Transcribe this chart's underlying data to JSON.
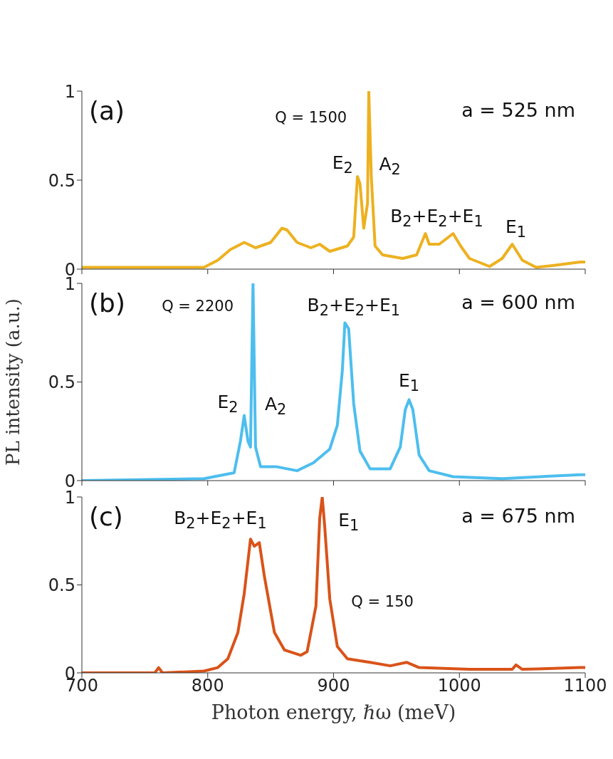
{
  "chart_data": [
    {
      "type": "line",
      "xlim": [
        700,
        1100
      ],
      "xticks": [
        700,
        800,
        900,
        1000,
        1100
      ],
      "ylim": [
        0,
        1
      ],
      "yticks": [
        0,
        0.5,
        1
      ],
      "tick_labels": "y",
      "grid": false,
      "legend": false,
      "marker": "none",
      "line_style": "solid",
      "series": [
        {
          "color": "#edb120",
          "x": [
            700,
            745,
            797,
            808,
            818,
            829,
            838,
            850,
            859,
            863,
            871,
            882,
            889,
            897,
            911,
            916,
            919,
            921,
            924,
            927,
            928,
            930,
            933,
            939,
            955,
            966,
            973,
            976,
            984,
            995,
            1001,
            1008,
            1024,
            1034,
            1042,
            1050,
            1061,
            1074,
            1096,
            1100
          ],
          "values": [
            0.01,
            0.01,
            0.01,
            0.05,
            0.11,
            0.15,
            0.12,
            0.15,
            0.23,
            0.22,
            0.15,
            0.12,
            0.14,
            0.1,
            0.13,
            0.18,
            0.52,
            0.48,
            0.23,
            0.37,
            1.0,
            0.52,
            0.13,
            0.08,
            0.06,
            0.08,
            0.2,
            0.14,
            0.14,
            0.2,
            0.13,
            0.06,
            0.015,
            0.06,
            0.14,
            0.05,
            0.01,
            0.02,
            0.04,
            0.04
          ]
        }
      ],
      "annotations": [
        "(a)",
        "a = 525 nm",
        "Q = 1500",
        "E$_{2}$",
        "A$_{2}$",
        "B$_{2}$+E$_{2}$+E$_{1}$",
        "E$_{1}$"
      ]
    },
    {
      "type": "line",
      "xlim": [
        700,
        1100
      ],
      "xticks": [
        700,
        800,
        900,
        1000,
        1100
      ],
      "ylim": [
        0,
        1
      ],
      "yticks": [
        0,
        0.5,
        1
      ],
      "tick_labels": "y",
      "grid": false,
      "legend": false,
      "marker": "none",
      "line_style": "solid",
      "ylabel": "PL intensity (a.u.)",
      "series": [
        {
          "color": "#4dbeee",
          "x": [
            700,
            797,
            821,
            826,
            829,
            832,
            834,
            836,
            838,
            842,
            855,
            871,
            884,
            897,
            903,
            907,
            909,
            912,
            916,
            921,
            929,
            945,
            953,
            957,
            960,
            963,
            968,
            976,
            995,
            1034,
            1096,
            1100
          ],
          "values": [
            0.0,
            0.01,
            0.04,
            0.2,
            0.33,
            0.2,
            0.17,
            1.0,
            0.17,
            0.07,
            0.07,
            0.05,
            0.09,
            0.16,
            0.28,
            0.56,
            0.8,
            0.77,
            0.39,
            0.15,
            0.06,
            0.06,
            0.17,
            0.36,
            0.41,
            0.36,
            0.13,
            0.05,
            0.02,
            0.01,
            0.03,
            0.03
          ]
        }
      ],
      "annotations": [
        "(b)",
        "a = 600 nm",
        "Q = 2200",
        "E$_{2}$",
        "A$_{2}$",
        "B$_{2}$+E$_{2}$+E$_{1}$",
        "E$_{1}$"
      ]
    },
    {
      "type": "line",
      "xlim": [
        700,
        1100
      ],
      "xticks": [
        700,
        800,
        900,
        1000,
        1100
      ],
      "ylim": [
        0,
        1
      ],
      "yticks": [
        0,
        0.5,
        1
      ],
      "grid": false,
      "legend": false,
      "marker": "none",
      "line_style": "solid",
      "xlabel": "Photon energy, ℏω (meV)",
      "series": [
        {
          "color": "#d95319",
          "x": [
            700,
            758,
            761,
            764,
            797,
            808,
            816,
            824,
            829,
            834,
            837,
            841,
            845,
            853,
            861,
            874,
            879,
            886,
            889,
            891,
            893,
            897,
            903,
            911,
            929,
            945,
            958,
            968,
            1008,
            1042,
            1045,
            1050,
            1096,
            1100
          ],
          "values": [
            0.0,
            0.0,
            0.03,
            0.0,
            0.01,
            0.03,
            0.08,
            0.23,
            0.45,
            0.76,
            0.72,
            0.74,
            0.55,
            0.23,
            0.13,
            0.1,
            0.12,
            0.38,
            0.88,
            1.0,
            0.83,
            0.42,
            0.15,
            0.08,
            0.06,
            0.04,
            0.06,
            0.03,
            0.02,
            0.02,
            0.045,
            0.02,
            0.03,
            0.03
          ]
        }
      ],
      "annotations": [
        "(c)",
        "a = 675 nm",
        "B$_{2}$+E$_{2}$+E$_{1}$",
        "E$_{1}$",
        "Q = 150"
      ]
    }
  ]
}
